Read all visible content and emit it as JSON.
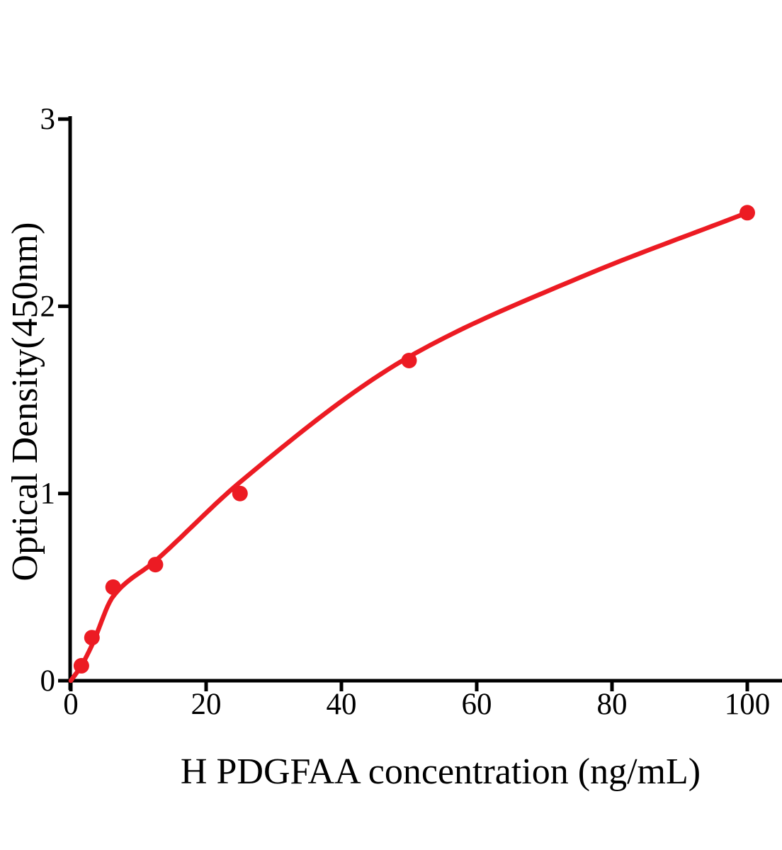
{
  "figure": {
    "background_color": "#ffffff",
    "axis_color": "#000000"
  },
  "chart_data": {
    "type": "scatter",
    "title": "",
    "xlabel": "H PDGFAA concentration (ng/mL)",
    "ylabel": "Optical Density(450nm)",
    "xlim": [
      0,
      105.2
    ],
    "ylim": [
      0,
      3
    ],
    "grid": false,
    "legend": "none",
    "x_ticks": [
      0,
      20,
      40,
      60,
      80,
      100
    ],
    "x_tick_labels": [
      "0",
      "20",
      "40",
      "60",
      "80",
      "100"
    ],
    "y_ticks": [
      0,
      1,
      2,
      3
    ],
    "y_tick_labels": [
      "0",
      "1",
      "2",
      "3"
    ],
    "series": [
      {
        "name": "standard-data-points",
        "type": "scatter",
        "color": "#ec1b23",
        "marker": "circle",
        "points": [
          {
            "x": 1.56,
            "y": 0.08
          },
          {
            "x": 3.125,
            "y": 0.23
          },
          {
            "x": 6.25,
            "y": 0.5
          },
          {
            "x": 12.5,
            "y": 0.62
          },
          {
            "x": 25,
            "y": 1.0
          },
          {
            "x": 50,
            "y": 1.71
          },
          {
            "x": 100,
            "y": 2.5
          }
        ]
      },
      {
        "name": "fitted-curve",
        "type": "line",
        "color": "#ec1b23",
        "points": [
          {
            "x": 0,
            "y": 0.0
          },
          {
            "x": 1.56,
            "y": 0.08
          },
          {
            "x": 3.125,
            "y": 0.19
          },
          {
            "x": 6.25,
            "y": 0.45
          },
          {
            "x": 12.5,
            "y": 0.64
          },
          {
            "x": 25,
            "y": 1.06
          },
          {
            "x": 50,
            "y": 1.73
          },
          {
            "x": 75,
            "y": 2.15
          },
          {
            "x": 100,
            "y": 2.5
          }
        ]
      }
    ]
  }
}
